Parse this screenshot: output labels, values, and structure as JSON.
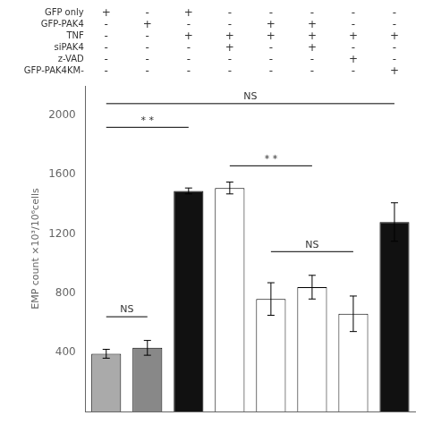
{
  "chart_data": {
    "type": "bar",
    "ylabel": "EMP count ×10³/10⁶cells",
    "xlabel": [
      "GFP only",
      "GFP-PAK4",
      "TNF",
      "siPAK4",
      "z-VAD",
      "GFP-PAK4KM-"
    ],
    "categories": [
      [
        "+",
        "-",
        "-",
        "-",
        "-",
        "-"
      ],
      [
        "-",
        "+",
        "-",
        "-",
        "-",
        "-"
      ],
      [
        "+",
        "-",
        "+",
        "-",
        "-",
        "-"
      ],
      [
        "-",
        "-",
        "+",
        "+",
        "-",
        "-"
      ],
      [
        "-",
        "+",
        "+",
        "-",
        "-",
        "-"
      ],
      [
        "-",
        "+",
        "+",
        "+",
        "-",
        "-"
      ],
      [
        "-",
        "-",
        "+",
        "-",
        "+",
        "-"
      ],
      [
        "-",
        "-",
        "+",
        "-",
        "-",
        "+"
      ]
    ],
    "values": [
      390,
      430,
      1490,
      1510,
      760,
      840,
      660,
      1280
    ],
    "errors": [
      30,
      50,
      20,
      40,
      110,
      80,
      120,
      130
    ],
    "colors": [
      "#aaaaaa",
      "#888888",
      "#111111",
      "white",
      "white",
      "white",
      "white",
      "#111111"
    ],
    "ylim": [
      0,
      2200
    ],
    "yticks": [
      400,
      800,
      1200,
      1600,
      2000
    ],
    "grid": false,
    "tick_labels": "y",
    "annotations": [
      {
        "text": "* *",
        "x1": 0,
        "x2": 2,
        "y": 1920
      },
      {
        "text": "NS",
        "x1": 0,
        "x2": 7,
        "y": 2080
      },
      {
        "text": "* *",
        "x1": 3,
        "x2": 5,
        "y": 1660
      },
      {
        "text": "NS",
        "x1": 0,
        "x2": 1,
        "y": 640
      },
      {
        "text": "NS",
        "x1": 4,
        "x2": 6,
        "y": 1080
      }
    ]
  }
}
